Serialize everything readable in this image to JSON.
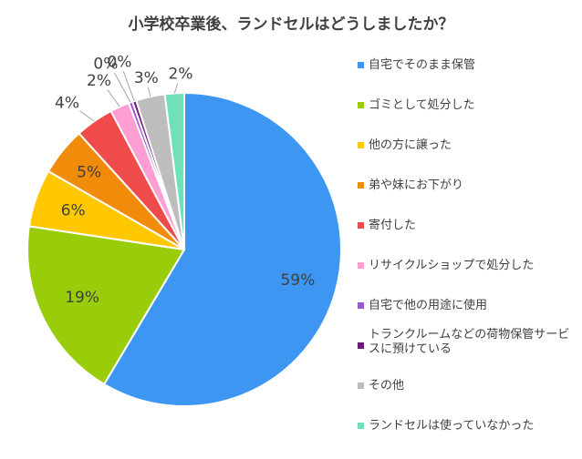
{
  "chart_data": {
    "type": "pie",
    "title": "小学校卒業後、ランドセルはどうしましたか？",
    "legend_position": "right",
    "slices": [
      {
        "label": "自宅でそのまま保管",
        "value": 59,
        "value_label": "59%",
        "color": "#3d97f2"
      },
      {
        "label": "ゴミとして処分した",
        "value": 19,
        "value_label": "19%",
        "color": "#9acd09"
      },
      {
        "label": "他の方に譲った",
        "value": 6,
        "value_label": "6%",
        "color": "#ffc800"
      },
      {
        "label": "弟や妹にお下がり",
        "value": 5,
        "value_label": "5%",
        "color": "#f08c0a"
      },
      {
        "label": "寄付した",
        "value": 4,
        "value_label": "4%",
        "color": "#f04b4b"
      },
      {
        "label": "リサイクルショップで処分した",
        "value": 2,
        "value_label": "2%",
        "color": "#ff9ed2"
      },
      {
        "label": "自宅で他の用途に使用",
        "value": 0.4,
        "value_label": "0%",
        "color": "#9b59d0"
      },
      {
        "label": "トランクルームなどの荷物保管サービスに預けている",
        "value": 0.4,
        "value_label": "0%",
        "color": "#6a1a7a"
      },
      {
        "label": "その他",
        "value": 3,
        "value_label": "3%",
        "color": "#bdbdbd"
      },
      {
        "label": "ランドセルは使っていなかった",
        "value": 2,
        "value_label": "2%",
        "color": "#6fe0b8"
      }
    ]
  }
}
